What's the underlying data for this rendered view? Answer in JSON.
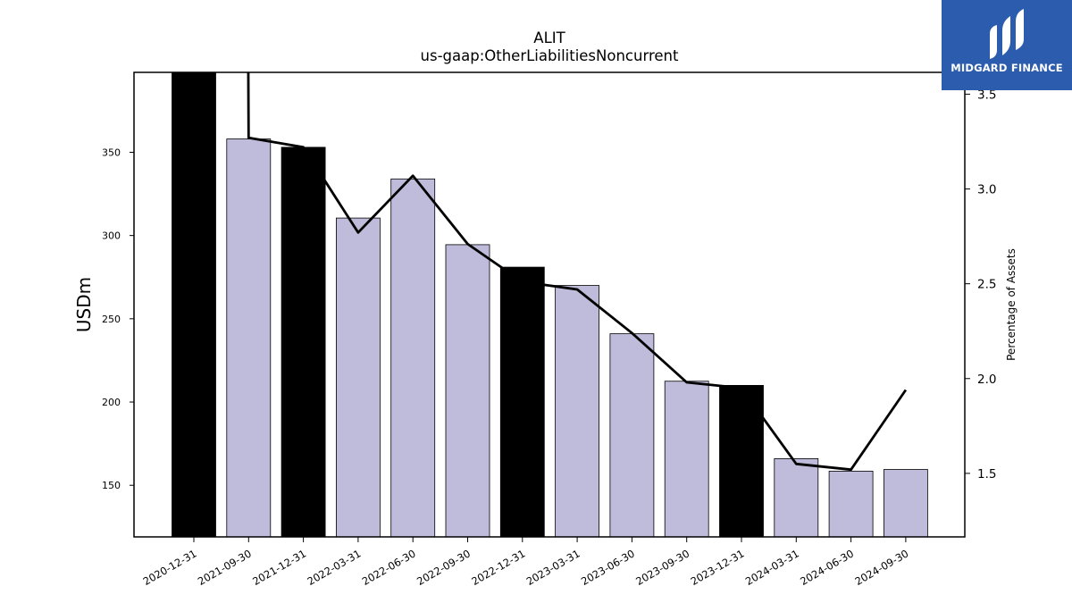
{
  "chart_data": {
    "type": "bar",
    "title": "ALIT",
    "subtitle": "us-gaap:OtherLiabilitiesNoncurrent",
    "ylabel": "USDm",
    "y2label": "Percentage of Assets",
    "categories": [
      "2020-12-31",
      "2021-09-30",
      "2021-12-31",
      "2022-03-31",
      "2022-06-30",
      "2022-09-30",
      "2022-12-31",
      "2023-03-31",
      "2023-06-30",
      "2023-09-30",
      "2023-12-31",
      "2024-03-31",
      "2024-06-30",
      "2024-09-30"
    ],
    "series": [
      {
        "values": [
          400,
          358,
          353,
          310.5,
          334,
          294.5,
          281,
          270,
          241,
          212.5,
          210,
          166,
          158.5,
          159.5
        ],
        "colors": [
          "#000000",
          "#bebbdb",
          "#000000",
          "#bebbdb",
          "#bebbdb",
          "#bebbdb",
          "#000000",
          "#bebbdb",
          "#bebbdb",
          "#bebbdb",
          "#000000",
          "#bebbdb",
          "#bebbdb",
          "#bebbdb"
        ]
      },
      {
        "axis": "right",
        "type": "line",
        "values": [
          4.6,
          3.27,
          3.22,
          2.77,
          3.07,
          2.71,
          2.51,
          2.47,
          2.24,
          1.98,
          1.95,
          1.55,
          1.52,
          1.94
        ],
        "color": "#000000"
      }
    ],
    "ylim": [
      119,
      398
    ],
    "y2lim": [
      1.165,
      3.615
    ],
    "yticks": [
      150,
      200,
      250,
      300,
      350
    ],
    "y2ticks": [
      "1.5",
      "2.0",
      "2.5",
      "3.0",
      "3.5"
    ],
    "grid": false
  },
  "logo": {
    "text": "MIDGARD FINANCE"
  }
}
